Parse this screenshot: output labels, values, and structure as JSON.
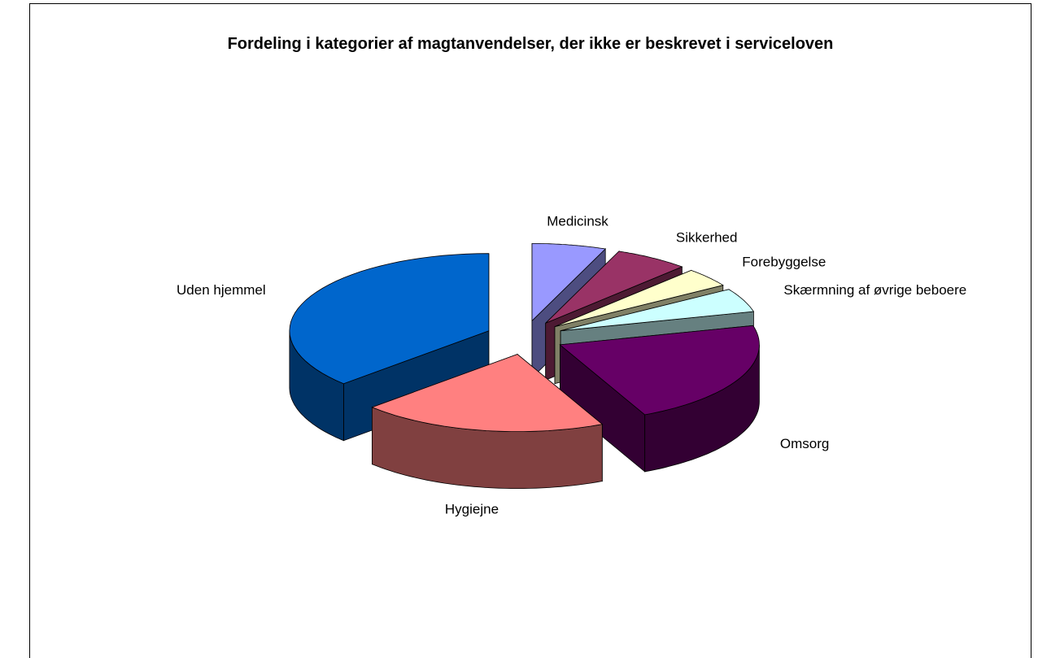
{
  "chart_data": {
    "type": "pie3d",
    "title": "Fordeling i kategorier af magtanvendelser, der ikke er beskrevet i serviceloven",
    "categories": [
      "Medicinsk",
      "Sikkerhed",
      "Forebyggelse",
      "Skærmning af øvrige beboere",
      "Omsorg",
      "Hygiejne",
      "Uden hjemmel"
    ],
    "values": [
      6,
      6,
      4,
      5,
      22,
      20,
      37
    ],
    "colors": [
      "#9999ff",
      "#993366",
      "#ffffcc",
      "#ccffff",
      "#660066",
      "#ff8080",
      "#0066cc"
    ]
  }
}
